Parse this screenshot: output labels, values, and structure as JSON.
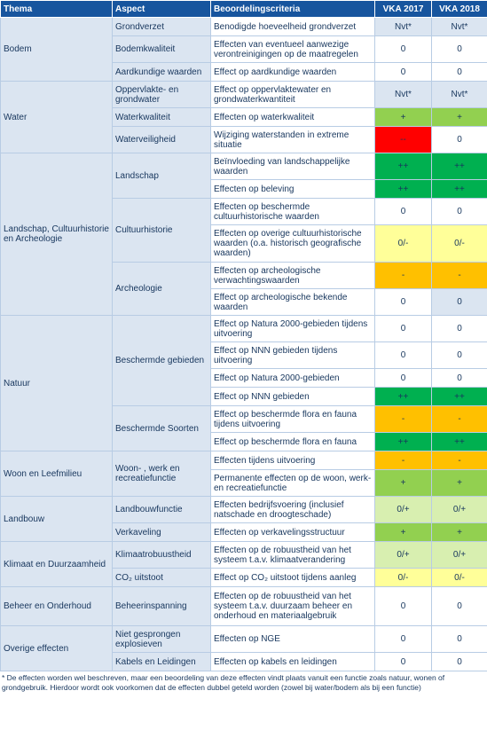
{
  "header": {
    "thema": "Thema",
    "aspect": "Aspect",
    "criteria": "Beoordelingscriteria",
    "vka2017": "VKA 2017",
    "vka2018": "VKA 2018"
  },
  "legend_colors": {
    "lgroen": "#92d050",
    "dgroen": "#00b050",
    "rood": "#ff0000",
    "oranje": "#ffc000",
    "geel": "#ffff99",
    "bleek": "#d8efb0",
    "blauw": "#dbe5f1"
  },
  "rows": [
    {
      "thema": "Bodem",
      "aspect": "Grondverzet",
      "criterium": "Benodigde hoeveelheid grondverzet",
      "v2017": "Nvt*",
      "v2018": "Nvt*",
      "c2017": "nvt",
      "c2018": "nvt"
    },
    {
      "aspect": "Bodemkwaliteit",
      "criterium": "Effecten van eventueel aanwezige verontreinigingen op de maatregelen",
      "v2017": "0",
      "v2018": "0",
      "c2017": "wit",
      "c2018": "wit"
    },
    {
      "aspect": "Aardkundige waarden",
      "criterium": "Effect op aardkundige waarden",
      "v2017": "0",
      "v2018": "0",
      "c2017": "wit",
      "c2018": "wit"
    },
    {
      "thema": "Water",
      "aspect": "Oppervlakte- en grondwater",
      "criterium": "Effect op oppervlaktewater en grondwaterkwantiteit",
      "v2017": "Nvt*",
      "v2018": "Nvt*",
      "c2017": "nvt",
      "c2018": "nvt"
    },
    {
      "aspect": "Waterkwaliteit",
      "criterium": "Effecten op waterkwaliteit",
      "v2017": "+",
      "v2018": "+",
      "c2017": "lgroen",
      "c2018": "lgroen"
    },
    {
      "aspect": "Waterveiligheid",
      "criterium": "Wijziging waterstanden in extreme situatie",
      "v2017": "--",
      "v2018": "0",
      "c2017": "rood",
      "c2018": "wit"
    },
    {
      "thema": "Landschap, Cultuurhistorie en Archeologie",
      "aspect": "Landschap",
      "criterium": "Beïnvloeding van landschappelijke waarden",
      "v2017": "++",
      "v2018": "++",
      "c2017": "dgroen",
      "c2018": "dgroen"
    },
    {
      "criterium": "Effecten op beleving",
      "v2017": "++",
      "v2018": "++",
      "c2017": "dgroen",
      "c2018": "dgroen"
    },
    {
      "aspect": "Cultuurhistorie",
      "criterium": "Effecten op beschermde cultuurhistorische waarden",
      "v2017": "0",
      "v2018": "0",
      "c2017": "wit",
      "c2018": "wit"
    },
    {
      "criterium": "Effecten op overige cultuurhistorische waarden (o.a. historisch geografische waarden)",
      "v2017": "0/-",
      "v2018": "0/-",
      "c2017": "geel",
      "c2018": "geel"
    },
    {
      "aspect": "Archeologie",
      "criterium": "Effecten op archeologische verwachtingswaarden",
      "v2017": "-",
      "v2018": "-",
      "c2017": "oranje",
      "c2018": "oranje"
    },
    {
      "criterium": "Effect op archeologische bekende waarden",
      "v2017": "0",
      "v2018": "0",
      "c2017": "wit",
      "c2018": "blauw"
    },
    {
      "thema": "Natuur",
      "aspect": "Beschermde gebieden",
      "criterium": "Effect op Natura 2000-gebieden tijdens uitvoering",
      "v2017": "0",
      "v2018": "0",
      "c2017": "wit",
      "c2018": "wit"
    },
    {
      "criterium": "Effect op NNN gebieden tijdens uitvoering",
      "v2017": "0",
      "v2018": "0",
      "c2017": "wit",
      "c2018": "wit"
    },
    {
      "criterium": "Effect op Natura 2000-gebieden",
      "v2017": "0",
      "v2018": "0",
      "c2017": "wit",
      "c2018": "wit"
    },
    {
      "criterium": "Effect op NNN gebieden",
      "v2017": "++",
      "v2018": "++",
      "c2017": "dgroen",
      "c2018": "dgroen"
    },
    {
      "aspect": "Beschermde Soorten",
      "criterium": "Effect op beschermde flora en fauna tijdens uitvoering",
      "v2017": "-",
      "v2018": "-",
      "c2017": "oranje",
      "c2018": "oranje"
    },
    {
      "criterium": "Effect op beschermde flora en fauna",
      "v2017": "++",
      "v2018": "++",
      "c2017": "dgroen",
      "c2018": "dgroen"
    },
    {
      "thema": "Woon en Leefmilieu",
      "aspect": "Woon- , werk en recreatiefunctie",
      "criterium": "Effecten tijdens uitvoering",
      "v2017": "-",
      "v2018": "-",
      "c2017": "oranje",
      "c2018": "oranje"
    },
    {
      "criterium": "Permanente effecten op de woon, werk- en recreatiefunctie",
      "v2017": "+",
      "v2018": "+",
      "c2017": "lgroen",
      "c2018": "lgroen"
    },
    {
      "thema": "Landbouw",
      "aspect": "Landbouwfunctie",
      "criterium": "Effecten bedrijfsvoering (inclusief natschade en droogteschade)",
      "v2017": "0/+",
      "v2018": "0/+",
      "c2017": "bleek",
      "c2018": "bleek"
    },
    {
      "aspect": "Verkaveling",
      "criterium": "Effecten op verkavelingsstructuur",
      "v2017": "+",
      "v2018": "+",
      "c2017": "lgroen",
      "c2018": "lgroen"
    },
    {
      "thema": "Klimaat en Duurzaamheid",
      "aspect": "Klimaatrobuustheid",
      "criterium": "Effecten op de robuustheid van het systeem t.a.v. klimaatverandering",
      "v2017": "0/+",
      "v2018": "0/+",
      "c2017": "bleek",
      "c2018": "bleek"
    },
    {
      "aspect": "CO₂ uitstoot",
      "criterium": "Effect op CO₂ uitstoot tijdens aanleg",
      "v2017": "0/-",
      "v2018": "0/-",
      "c2017": "geel",
      "c2018": "geel"
    },
    {
      "thema": "Beheer en Onderhoud",
      "aspect": "Beheerinspanning",
      "criterium": "Effecten op de robuustheid van het systeem t.a.v. duurzaam beheer en onderhoud en materiaalgebruik",
      "v2017": "0",
      "v2018": "0",
      "c2017": "wit",
      "c2018": "wit"
    },
    {
      "thema": "Overige effecten",
      "aspect": "Niet gesprongen explosieven",
      "criterium": "Effecten op NGE",
      "v2017": "0",
      "v2018": "0",
      "c2017": "wit",
      "c2018": "wit"
    },
    {
      "aspect": "Kabels en Leidingen",
      "criterium": "Effecten op kabels en leidingen",
      "v2017": "0",
      "v2018": "0",
      "c2017": "wit",
      "c2018": "wit"
    }
  ],
  "footnote": "* De effecten worden wel beschreven, maar een beoordeling van deze effecten vindt plaats vanuit een functie zoals natuur, wonen of grondgebruik. Hierdoor wordt ook voorkomen dat de effecten dubbel geteld worden (zowel bij water/bodem als bij een functie)"
}
